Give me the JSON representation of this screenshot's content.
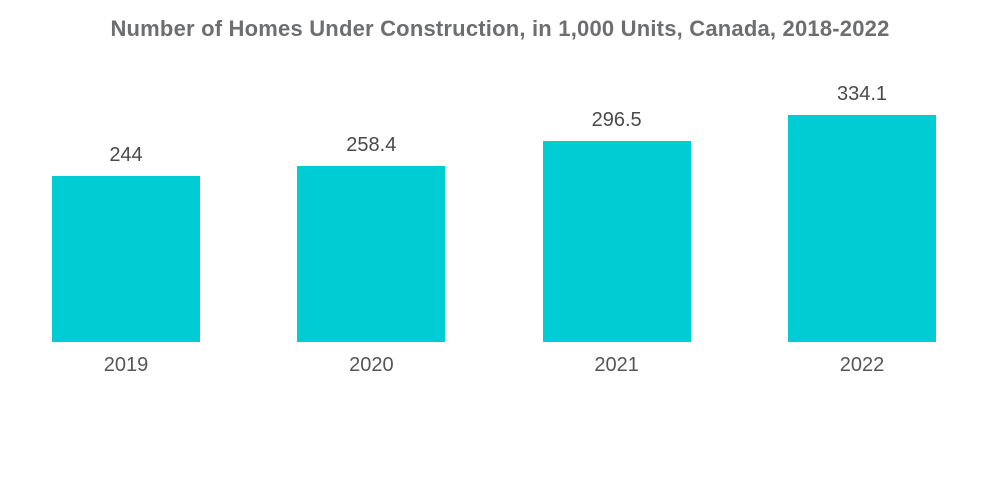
{
  "header": {
    "title": "Number of Homes Under Construction, in 1,000 Units, Canada, 2018-2022"
  },
  "colors": {
    "bar": "#00CCD4",
    "title_text": "#6d6e70",
    "value_text": "#4a4a4a",
    "year_text": "#565656",
    "background": "#ffffff"
  },
  "chart_data": {
    "type": "bar",
    "title": "Number of Homes Under Construction, in 1,000 Units, Canada, 2018-2022",
    "categories": [
      "2019",
      "2020",
      "2021",
      "2022"
    ],
    "values": [
      244,
      258.4,
      296.5,
      334.1
    ],
    "value_labels": [
      "244",
      "258.4",
      "296.5",
      "334.1"
    ],
    "xlabel": "",
    "ylabel": "",
    "ylim": [
      0,
      334.1
    ],
    "grid": false,
    "legend": false,
    "axes_visible": false,
    "bar_color": "#00CCD4"
  }
}
